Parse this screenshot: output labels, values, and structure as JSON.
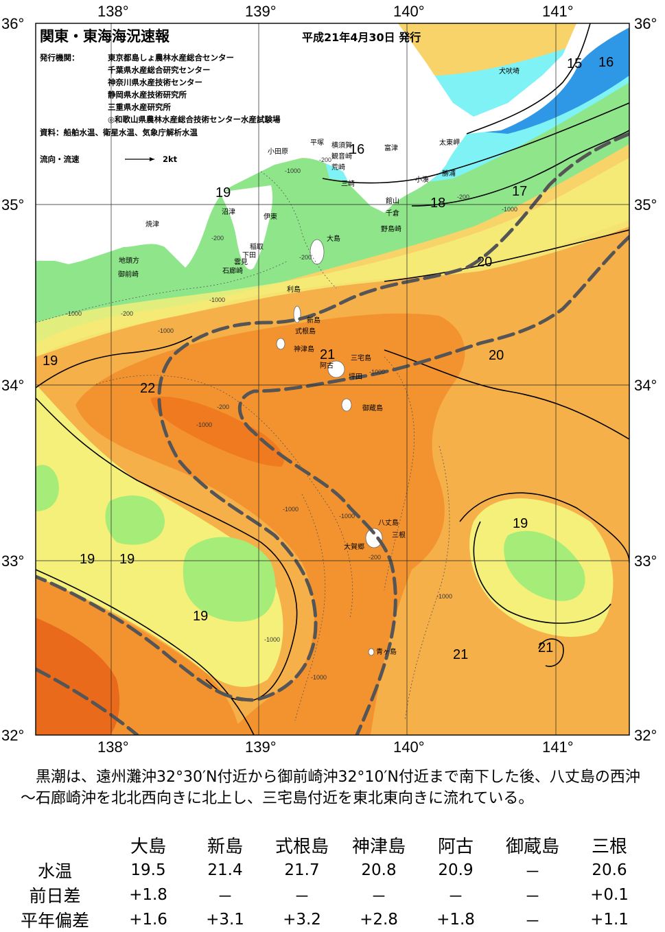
{
  "header": {
    "title": "関東・東海海況速報",
    "date": "平成21年4月30日 発行",
    "issuer_label": "発行機関：",
    "issuers": [
      "東京都島しょ農林水産総合センター",
      "千葉県水産総合研究センター",
      "神奈川県水産技術センター",
      "静岡県水産技術研究所",
      "三重県水産研究所",
      "◎和歌山県農林水産総合技術センター水産試験場"
    ],
    "sources": "資料：船舶水温、衛星水温、気象庁解析水温",
    "flow_label": "流向・流速",
    "flow_unit": "2kt"
  },
  "axes": {
    "lon_labels": [
      "138°",
      "139°",
      "140°",
      "141°"
    ],
    "lat_labels": [
      "36°",
      "35°",
      "34°",
      "33°",
      "32°"
    ]
  },
  "places": {
    "inubozaki": "犬吠埼",
    "taitomisaki": "太東岬",
    "katsuura": "勝浦",
    "kominato": "小湊",
    "futtsu": "富津",
    "odawara": "小田原",
    "hiratsuka": "平塚",
    "yokosuka": "横須賀",
    "kannonzaki": "観音崎",
    "arasaki": "荒崎",
    "misaki": "三崎",
    "tateyama": "館山",
    "chikura": "千倉",
    "nojimazaki": "野島崎",
    "numazu": "沼津",
    "ito": "伊東",
    "oshima": "大島",
    "inatori": "稲取",
    "shimoda": "下田",
    "kumomi": "雲見",
    "irozaki": "石廊崎",
    "yaizu": "焼津",
    "jitokata": "地頭方",
    "omaezaki": "御前崎",
    "toshima": "利島",
    "niijima": "新島",
    "shikinejima": "式根島",
    "kozushima": "神津島",
    "ako": "阿古",
    "miyakejima": "三宅島",
    "tsubota": "坪田",
    "mikurajima": "御蔵島",
    "hachijojima": "八丈島",
    "mitsune": "三根",
    "okago": "大賀郷",
    "aogashima": "青ヶ島"
  },
  "isotherms": [
    "15",
    "16",
    "16",
    "17",
    "18",
    "19",
    "19",
    "19",
    "19",
    "19",
    "19",
    "20",
    "20",
    "21",
    "21",
    "21",
    "22"
  ],
  "depths": [
    "-1000",
    "-200",
    "-1000",
    "-200",
    "-200",
    "-200",
    "-1000",
    "-1000",
    "-200",
    "-1000",
    "-200",
    "-1000",
    "-1000",
    "-1000",
    "-1000",
    "-200",
    "-1000",
    "-1000",
    "-1000"
  ],
  "summary": "黒潮は、遠州灘沖32°30′N付近から御前崎沖32°10′N付近まで南下した後、八丈島の西沖～石廊崎沖を北北西向きに北上し、三宅島付近を東北東向きに流れている。",
  "table": {
    "columns": [
      "大島",
      "新島",
      "式根島",
      "神津島",
      "阿古",
      "御蔵島",
      "三根"
    ],
    "rows": [
      {
        "label": "水温",
        "values": [
          "19.5",
          "21.4",
          "21.7",
          "20.8",
          "20.9",
          "－",
          "20.6"
        ]
      },
      {
        "label": "前日差",
        "values": [
          "+1.8",
          "－",
          "－",
          "－",
          "－",
          "－",
          "+0.1"
        ]
      },
      {
        "label": "平年偏差",
        "values": [
          "+1.6",
          "+3.1",
          "+3.2",
          "+2.8",
          "+1.8",
          "－",
          "+1.1"
        ]
      }
    ]
  },
  "colors": {
    "t15": "#2e97e6",
    "t16": "#7ff2f5",
    "t17": "#8fe68a",
    "t18": "#a6ec78",
    "t19": "#f5f07a",
    "t20": "#f8d36a",
    "t21": "#f6b04a",
    "t22": "#f39330",
    "t23": "#ef7a20",
    "kuroshio": "#555555",
    "land": "#ffffff"
  }
}
